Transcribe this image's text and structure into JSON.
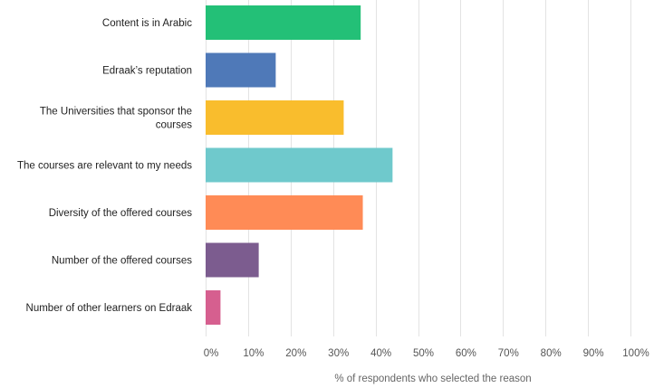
{
  "chart_data": {
    "type": "bar",
    "orientation": "horizontal",
    "categories": [
      "Content is in Arabic",
      "Edraak's reputation",
      "The Universities that sponsor the courses",
      "The courses are relevant to my needs",
      "Diversity of the offered courses",
      "Number of the offered courses",
      "Number of other learners on Edraak"
    ],
    "category_lines": [
      [
        "Content is in Arabic"
      ],
      [
        "Edraak’s reputation"
      ],
      [
        "The Universities that sponsor the",
        "courses"
      ],
      [
        "The courses are relevant to my needs"
      ],
      [
        "Diversity of the offered courses"
      ],
      [
        "Number of the offered courses"
      ],
      [
        "Number of other learners on Edraak"
      ]
    ],
    "values": [
      36.5,
      16.5,
      32.5,
      44,
      37,
      12.5,
      3.5
    ],
    "colors": [
      "#23c077",
      "#4f79b8",
      "#f9bd2d",
      "#6fc9cc",
      "#ff8b56",
      "#7c5c8f",
      "#d65f8f"
    ],
    "xlabel": "% of respondents who selected the reason",
    "ylabel": "",
    "xlim": [
      0,
      100
    ],
    "x_ticks": [
      0,
      10,
      20,
      30,
      40,
      50,
      60,
      70,
      80,
      90,
      100
    ],
    "x_tick_labels": [
      "0%",
      "10%",
      "20%",
      "30%",
      "40%",
      "50%",
      "60%",
      "70%",
      "80%",
      "90%",
      "100%"
    ],
    "grid": true
  }
}
